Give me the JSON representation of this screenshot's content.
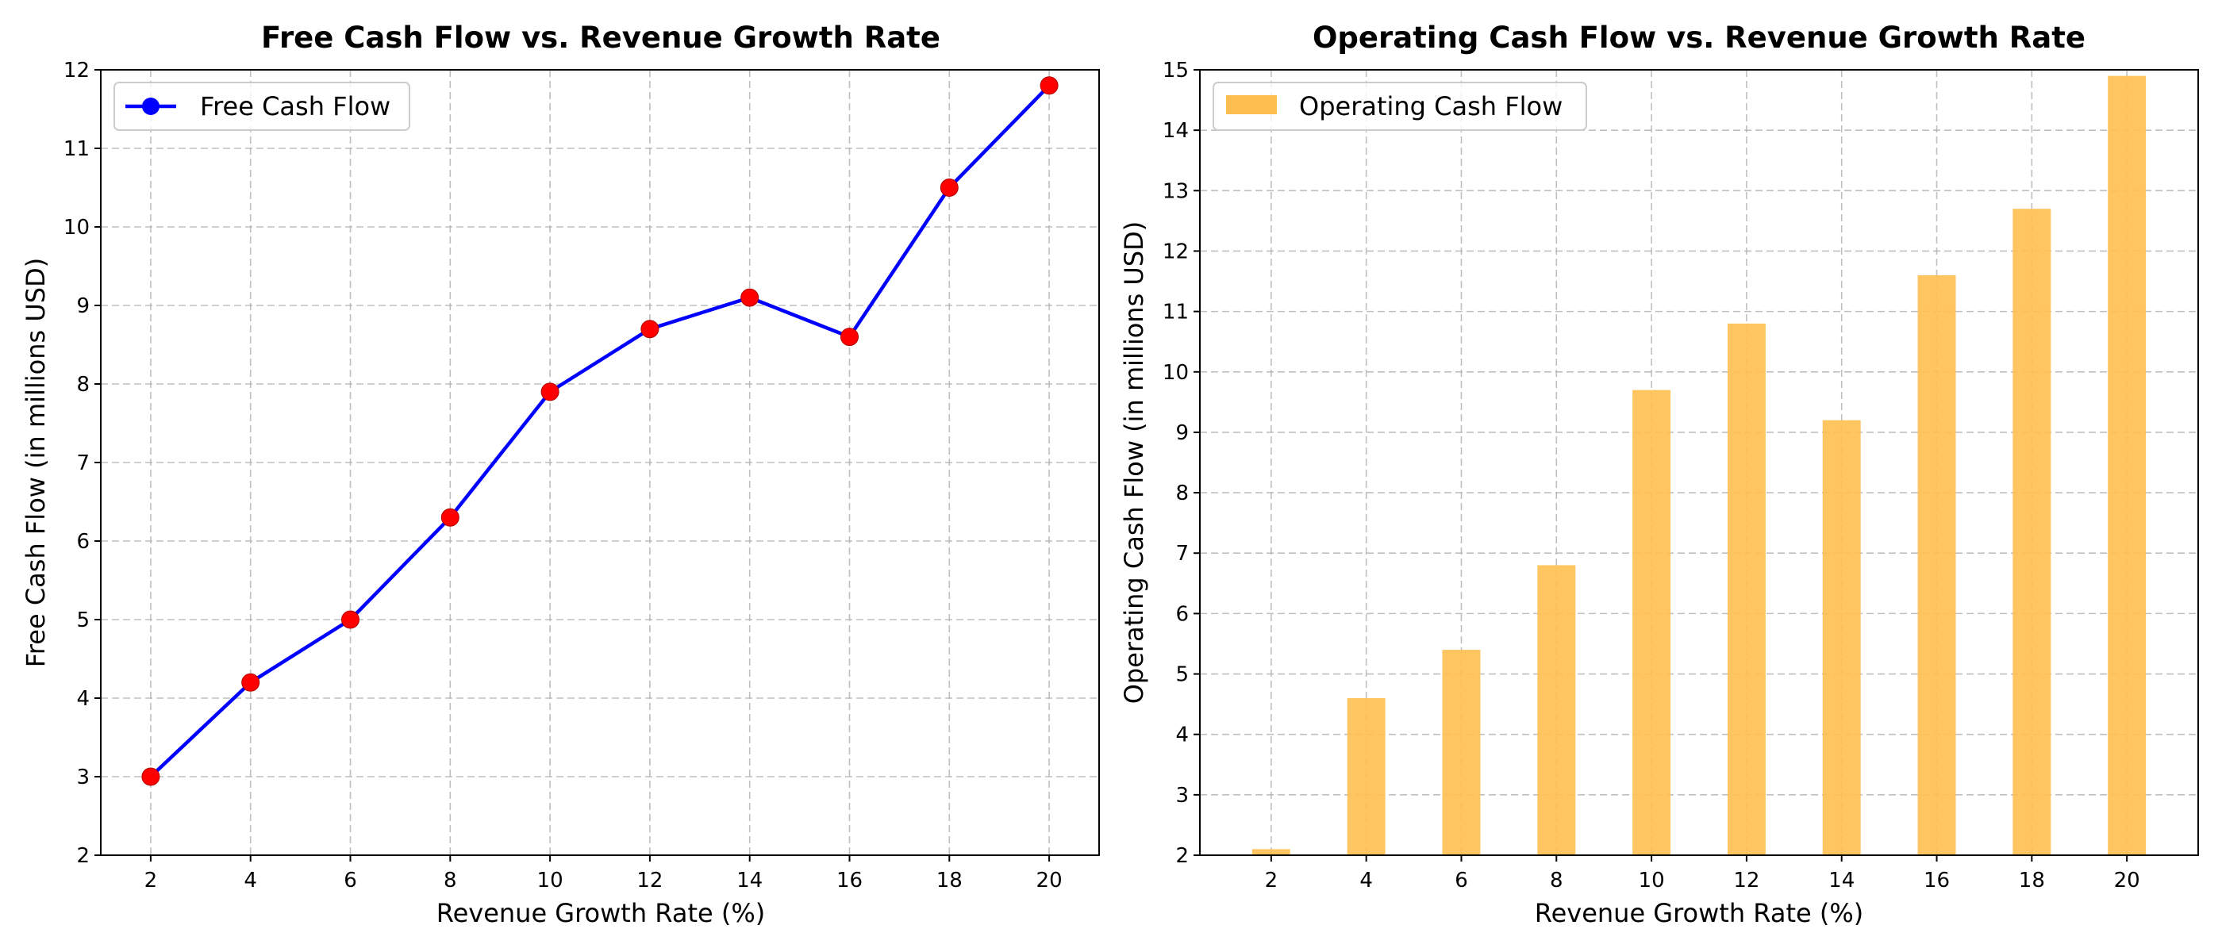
{
  "chart_data": [
    {
      "type": "line",
      "title": "Free Cash Flow vs. Revenue Growth Rate",
      "xlabel": "Revenue Growth Rate (%)",
      "ylabel": "Free Cash Flow (in millions USD)",
      "x": [
        2,
        4,
        6,
        8,
        10,
        12,
        14,
        16,
        18,
        20
      ],
      "xticks": [
        "2",
        "4",
        "6",
        "8",
        "10",
        "12",
        "14",
        "16",
        "18",
        "20"
      ],
      "xlim": [
        1,
        21
      ],
      "ylim": [
        2,
        12
      ],
      "yticks": [
        "2",
        "3",
        "4",
        "5",
        "6",
        "7",
        "8",
        "9",
        "10",
        "11",
        "12"
      ],
      "grid": true,
      "legend_position": "upper-left",
      "series": [
        {
          "name": "Free Cash Flow",
          "values": [
            3.0,
            4.2,
            5.0,
            6.3,
            7.9,
            8.7,
            9.1,
            8.6,
            10.5,
            11.8
          ],
          "line_color": "#0000ff",
          "marker_color": "#ff0000",
          "legend_marker_color": "#0000ff"
        }
      ]
    },
    {
      "type": "bar",
      "title": "Operating Cash Flow vs. Revenue Growth Rate",
      "xlabel": "Revenue Growth Rate (%)",
      "ylabel": "Operating Cash Flow (in millions USD)",
      "categories": [
        "2",
        "4",
        "6",
        "8",
        "10",
        "12",
        "14",
        "16",
        "18",
        "20"
      ],
      "x": [
        2,
        4,
        6,
        8,
        10,
        12,
        14,
        16,
        18,
        20
      ],
      "xlim": [
        0.5,
        21.5
      ],
      "ylim": [
        2,
        15
      ],
      "yticks": [
        "2",
        "3",
        "4",
        "5",
        "6",
        "7",
        "8",
        "9",
        "10",
        "11",
        "12",
        "13",
        "14",
        "15"
      ],
      "grid": true,
      "legend_position": "upper-left",
      "series": [
        {
          "name": "Operating Cash Flow",
          "values": [
            2.1,
            4.6,
            5.4,
            6.8,
            9.7,
            10.8,
            9.2,
            11.6,
            12.7,
            14.9
          ],
          "color": "#ffbf50"
        }
      ]
    }
  ]
}
